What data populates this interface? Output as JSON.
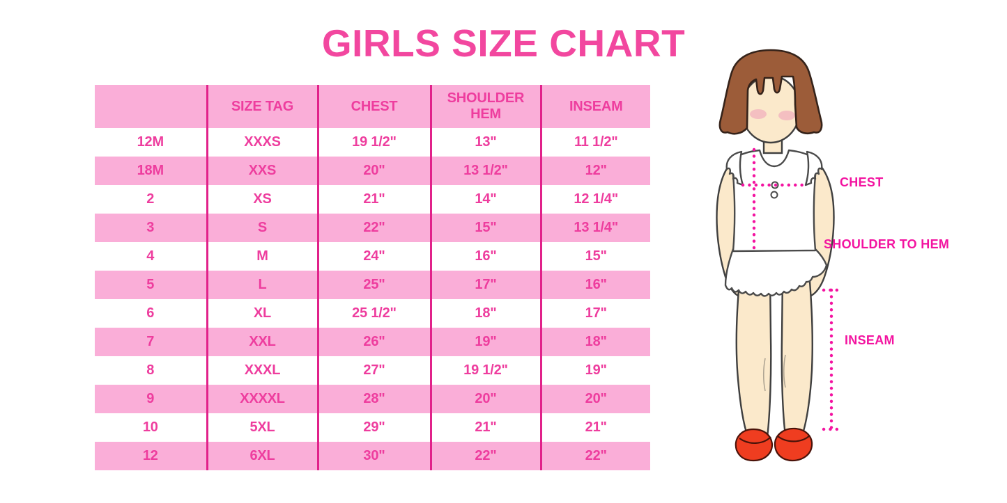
{
  "title": "GIRLS SIZE CHART",
  "colors": {
    "background": "#FFFFFF",
    "title_pink": "#F2479F",
    "row_pink": "#FAAED8",
    "divider_pink": "#E1218A",
    "cell_text_pink": "#EE3D9E",
    "label_pink": "#F313A0",
    "hair_brown": "#9C5C39",
    "hair_outline": "#35231A",
    "skin": "#FBE9CB",
    "blush": "#F0A9BC",
    "shoe_red": "#EF3D20",
    "shoe_outline": "#4A130A",
    "garment_outline": "#4A4A4A",
    "outline_dark": "#3F3F3F"
  },
  "table": {
    "columns": [
      {
        "key": "size",
        "label": ""
      },
      {
        "key": "size_tag",
        "label": "SIZE TAG"
      },
      {
        "key": "chest",
        "label": "CHEST"
      },
      {
        "key": "shoulder_hem",
        "label": "SHOULDER HEM"
      },
      {
        "key": "inseam",
        "label": "INSEAM"
      }
    ],
    "rows": [
      {
        "size": "12M",
        "size_tag": "XXXS",
        "chest": "19 1/2\"",
        "shoulder_hem": "13\"",
        "inseam": "11 1/2\""
      },
      {
        "size": "18M",
        "size_tag": "XXS",
        "chest": "20\"",
        "shoulder_hem": "13 1/2\"",
        "inseam": "12\""
      },
      {
        "size": "2",
        "size_tag": "XS",
        "chest": "21\"",
        "shoulder_hem": "14\"",
        "inseam": "12 1/4\""
      },
      {
        "size": "3",
        "size_tag": "S",
        "chest": "22\"",
        "shoulder_hem": "15\"",
        "inseam": "13 1/4\""
      },
      {
        "size": "4",
        "size_tag": "M",
        "chest": "24\"",
        "shoulder_hem": "16\"",
        "inseam": "15\""
      },
      {
        "size": "5",
        "size_tag": "L",
        "chest": "25\"",
        "shoulder_hem": "17\"",
        "inseam": "16\""
      },
      {
        "size": "6",
        "size_tag": "XL",
        "chest": "25 1/2\"",
        "shoulder_hem": "18\"",
        "inseam": "17\""
      },
      {
        "size": "7",
        "size_tag": "XXL",
        "chest": "26\"",
        "shoulder_hem": "19\"",
        "inseam": "18\""
      },
      {
        "size": "8",
        "size_tag": "XXXL",
        "chest": "27\"",
        "shoulder_hem": "19 1/2\"",
        "inseam": "19\""
      },
      {
        "size": "9",
        "size_tag": "XXXXL",
        "chest": "28\"",
        "shoulder_hem": "20\"",
        "inseam": "20\""
      },
      {
        "size": "10",
        "size_tag": "5XL",
        "chest": "29\"",
        "shoulder_hem": "21\"",
        "inseam": "21\""
      },
      {
        "size": "12",
        "size_tag": "6XL",
        "chest": "30\"",
        "shoulder_hem": "22\"",
        "inseam": "22\""
      }
    ]
  },
  "figure": {
    "labels": {
      "chest": "CHEST",
      "shoulder_to_hem": "SHOULDER TO HEM",
      "inseam": "INSEAM"
    }
  }
}
